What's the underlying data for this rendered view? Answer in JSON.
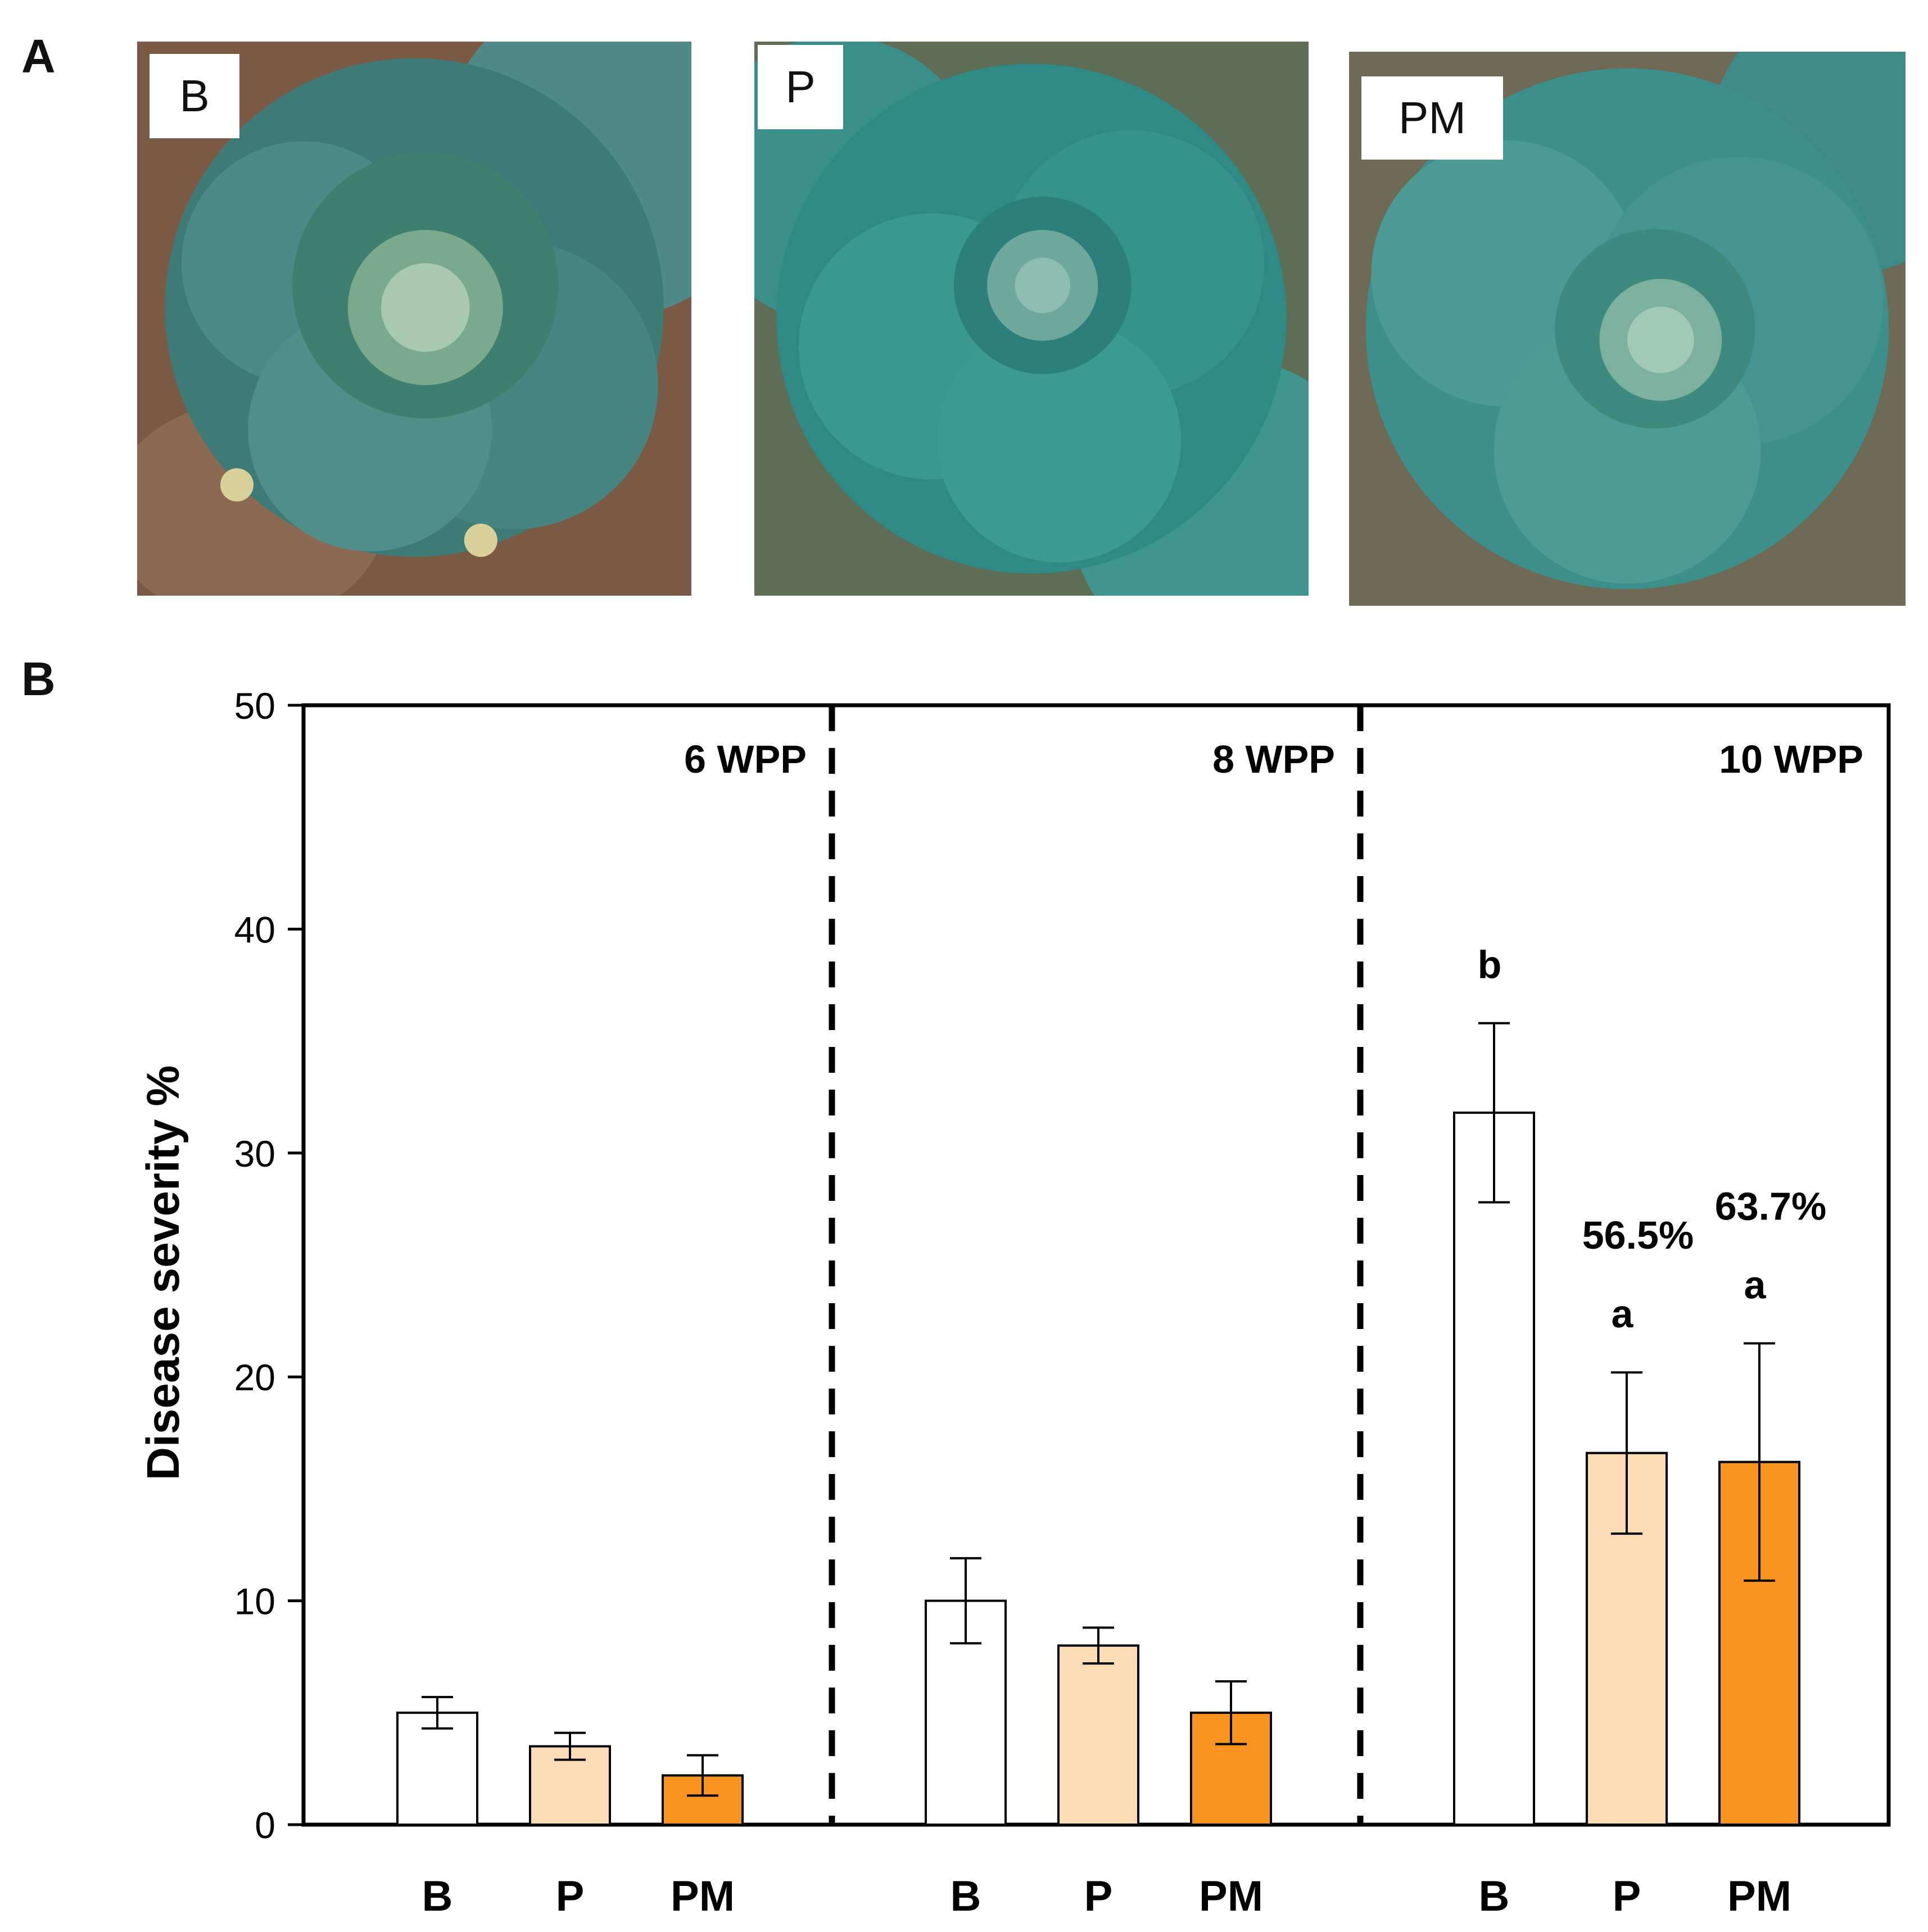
{
  "panel_a": {
    "label": "A",
    "photos": [
      {
        "tag": "B",
        "subject": "cabbage-photo"
      },
      {
        "tag": "P",
        "subject": "cabbage-photo"
      },
      {
        "tag": "PM",
        "subject": "cabbage-photo"
      }
    ]
  },
  "panel_b": {
    "label": "B"
  },
  "colors": {
    "B": "#ffffff",
    "P": "#fcdcb4",
    "PM": "#f7931e",
    "stroke": "#000000"
  },
  "chart_data": {
    "type": "bar",
    "title": "",
    "xlabel": "",
    "ylabel": "Disease severity %",
    "ylim": [
      0,
      50
    ],
    "yticks": [
      0,
      10,
      20,
      30,
      40,
      50
    ],
    "grid": false,
    "groups": [
      {
        "name": "6 WPP",
        "bars": [
          {
            "category": "B",
            "value": 5.0,
            "error": 0.7,
            "letter": "",
            "reduction": ""
          },
          {
            "category": "P",
            "value": 3.5,
            "error": 0.6,
            "letter": "",
            "reduction": ""
          },
          {
            "category": "PM",
            "value": 2.2,
            "error": 0.9,
            "letter": "",
            "reduction": ""
          }
        ]
      },
      {
        "name": "8 WPP",
        "bars": [
          {
            "category": "B",
            "value": 10.0,
            "error": 1.9,
            "letter": "",
            "reduction": ""
          },
          {
            "category": "P",
            "value": 8.0,
            "error": 0.8,
            "letter": "",
            "reduction": ""
          },
          {
            "category": "PM",
            "value": 5.0,
            "error": 1.4,
            "letter": "",
            "reduction": ""
          }
        ]
      },
      {
        "name": "10 WPP",
        "bars": [
          {
            "category": "B",
            "value": 31.8,
            "error": 4.0,
            "letter": "b",
            "reduction": ""
          },
          {
            "category": "P",
            "value": 16.6,
            "error": 3.6,
            "letter": "a",
            "reduction": "56.5%"
          },
          {
            "category": "PM",
            "value": 16.2,
            "error": 5.3,
            "letter": "a",
            "reduction": "63.7%"
          }
        ]
      }
    ]
  }
}
